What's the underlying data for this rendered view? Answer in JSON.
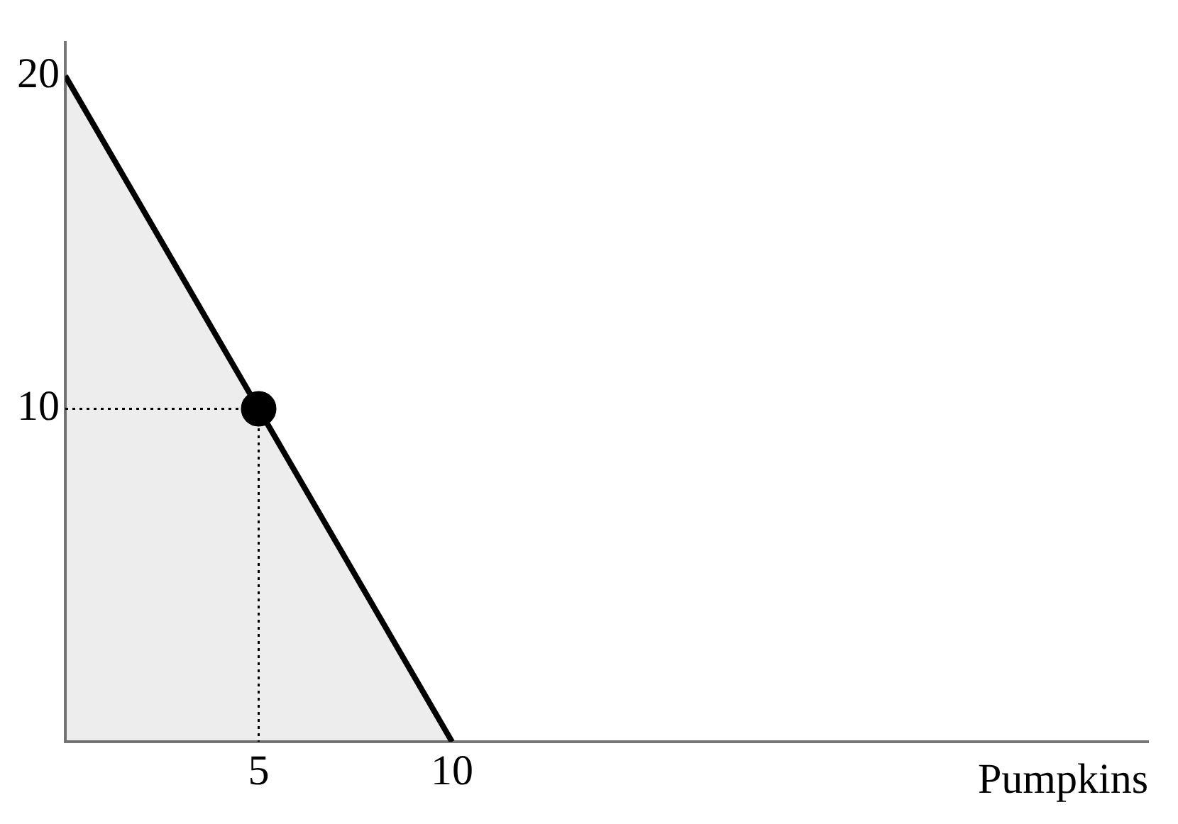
{
  "chart_data": {
    "type": "line",
    "xlabel": "Pumpkins",
    "xlim": [
      0,
      28
    ],
    "ylim": [
      0,
      21
    ],
    "xticks": [
      5,
      10
    ],
    "yticks": [
      10,
      20
    ],
    "grid": false,
    "legend": false,
    "series": [
      {
        "type": "area",
        "color": "#000000",
        "x": [
          0,
          10
        ],
        "values": [
          20,
          0
        ],
        "marker": "none",
        "line_style": "solid"
      },
      {
        "color": "#000000",
        "x": [
          0,
          5,
          5
        ],
        "values": [
          10,
          10,
          0
        ],
        "marker": "none",
        "line_style": "dotted"
      },
      {
        "type": "scatter",
        "color": "#000000",
        "x": [
          5
        ],
        "values": [
          10
        ],
        "marker": "circle"
      }
    ]
  }
}
